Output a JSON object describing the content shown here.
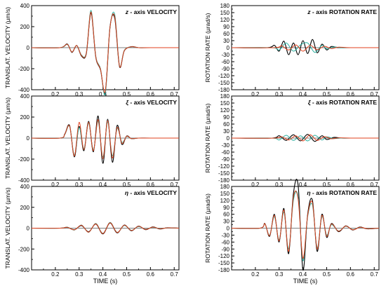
{
  "chart_data": [
    {
      "type": "line",
      "title_sym": "z",
      "title": " - axis  VELOCITY",
      "ylabel": "TRANSLAT. VELOCITY  (µm/s)",
      "xlabel": "",
      "xlim": [
        0.1,
        0.72
      ],
      "ylim": [
        -400,
        400
      ],
      "yticks": [
        "400",
        "200",
        "0",
        "-200",
        "-400"
      ],
      "xticks": [
        "0.2",
        "0.3",
        "0.4",
        "0.5",
        "0.6",
        "0.7"
      ],
      "series": [
        {
          "color": "#000000",
          "x": [
            0.1,
            0.22,
            0.25,
            0.27,
            0.29,
            0.31,
            0.33,
            0.35,
            0.37,
            0.39,
            0.41,
            0.43,
            0.45,
            0.47,
            0.49,
            0.52,
            0.55,
            0.6,
            0.72
          ],
          "y": [
            0,
            0,
            35,
            -45,
            20,
            -80,
            -60,
            330,
            -90,
            -210,
            -420,
            200,
            280,
            -180,
            -30,
            10,
            0,
            0,
            0
          ]
        },
        {
          "color": "#2ab0a0",
          "x": [
            0.1,
            0.22,
            0.25,
            0.27,
            0.29,
            0.31,
            0.33,
            0.35,
            0.37,
            0.39,
            0.41,
            0.43,
            0.45,
            0.47,
            0.49,
            0.52,
            0.55,
            0.6,
            0.72
          ],
          "y": [
            0,
            0,
            30,
            -40,
            22,
            -70,
            -50,
            355,
            -80,
            -200,
            -440,
            190,
            315,
            -170,
            -25,
            8,
            0,
            0,
            0
          ]
        },
        {
          "color": "#e0401c",
          "x": [
            0.1,
            0.22,
            0.25,
            0.27,
            0.29,
            0.31,
            0.33,
            0.35,
            0.37,
            0.39,
            0.41,
            0.43,
            0.45,
            0.47,
            0.49,
            0.52,
            0.55,
            0.6,
            0.72
          ],
          "y": [
            0,
            0,
            32,
            -42,
            21,
            -75,
            -55,
            340,
            -85,
            -205,
            -415,
            195,
            295,
            -175,
            -28,
            9,
            0,
            0,
            0
          ]
        }
      ]
    },
    {
      "type": "line",
      "title_sym": "z",
      "title": " - axis  ROTATION RATE",
      "ylabel": "ROTATION  RATE  (µrad/s)",
      "xlabel": "",
      "xlim": [
        0.1,
        0.72
      ],
      "ylim": [
        -180,
        180
      ],
      "yticks": [
        "180",
        "150",
        "120",
        "90",
        "60",
        "30",
        "0",
        "-30",
        "-60",
        "-90",
        "-120",
        "-150",
        "-180"
      ],
      "xticks": [
        "0.2",
        "0.3",
        "0.4",
        "0.5",
        "0.6",
        "0.7"
      ],
      "series": [
        {
          "color": "#000000",
          "x": [
            0.1,
            0.25,
            0.28,
            0.3,
            0.32,
            0.34,
            0.36,
            0.38,
            0.4,
            0.42,
            0.44,
            0.46,
            0.48,
            0.5,
            0.52,
            0.55,
            0.6,
            0.72
          ],
          "y": [
            0,
            0,
            10,
            -15,
            28,
            -30,
            20,
            -30,
            30,
            -25,
            35,
            -22,
            15,
            -10,
            5,
            0,
            0,
            0
          ]
        },
        {
          "color": "#2ab0a0",
          "x": [
            0.1,
            0.27,
            0.3,
            0.33,
            0.36,
            0.39,
            0.42,
            0.45,
            0.48,
            0.5,
            0.53,
            0.56,
            0.6,
            0.72
          ],
          "y": [
            0,
            0,
            -10,
            20,
            -15,
            12,
            20,
            -20,
            10,
            -5,
            3,
            0,
            0,
            0
          ]
        },
        {
          "color": "#e0401c",
          "x": [
            0.1,
            0.28,
            0.31,
            0.34,
            0.37,
            0.4,
            0.43,
            0.46,
            0.49,
            0.52,
            0.55,
            0.6,
            0.72
          ],
          "y": [
            0,
            0,
            8,
            -10,
            12,
            -15,
            10,
            -8,
            6,
            -4,
            2,
            0,
            0
          ]
        }
      ]
    },
    {
      "type": "line",
      "title_sym": "ξ",
      "title": " - axis  VELOCITY",
      "ylabel": "TRANSLAT. VELOCITY  (µm/s)",
      "xlabel": "",
      "xlim": [
        0.1,
        0.72
      ],
      "ylim": [
        -400,
        400
      ],
      "yticks": [
        "400",
        "200",
        "0",
        "-200",
        "-400"
      ],
      "xticks": [
        "0.2",
        "0.3",
        "0.4",
        "0.5",
        "0.6",
        "0.7"
      ],
      "series": [
        {
          "color": "#000000",
          "x": [
            0.1,
            0.22,
            0.24,
            0.26,
            0.28,
            0.3,
            0.32,
            0.34,
            0.36,
            0.38,
            0.4,
            0.42,
            0.44,
            0.46,
            0.48,
            0.5,
            0.52,
            0.55,
            0.6,
            0.72
          ],
          "y": [
            0,
            0,
            40,
            120,
            -180,
            110,
            -120,
            160,
            -130,
            210,
            -240,
            180,
            -230,
            120,
            -60,
            20,
            -5,
            0,
            0,
            0
          ]
        },
        {
          "color": "#2ab0a0",
          "x": [
            0.1,
            0.22,
            0.24,
            0.26,
            0.28,
            0.3,
            0.32,
            0.34,
            0.36,
            0.38,
            0.4,
            0.42,
            0.44,
            0.46,
            0.48,
            0.5,
            0.52,
            0.55,
            0.6,
            0.72
          ],
          "y": [
            0,
            0,
            35,
            110,
            -160,
            100,
            -100,
            140,
            -110,
            160,
            -180,
            150,
            -170,
            90,
            -40,
            15,
            -5,
            0,
            0,
            0
          ]
        },
        {
          "color": "#e0401c",
          "x": [
            0.1,
            0.22,
            0.24,
            0.26,
            0.28,
            0.3,
            0.32,
            0.34,
            0.36,
            0.38,
            0.4,
            0.42,
            0.44,
            0.46,
            0.48,
            0.5,
            0.52,
            0.55,
            0.6,
            0.72
          ],
          "y": [
            0,
            0,
            38,
            115,
            -170,
            150,
            -110,
            150,
            -120,
            175,
            -195,
            165,
            -190,
            100,
            -50,
            18,
            -5,
            0,
            0,
            0
          ]
        }
      ]
    },
    {
      "type": "line",
      "title_sym": "ξ",
      "title": " - axis  ROTATION RATE",
      "ylabel": "ROTATION  RATE  (µrad/s)",
      "xlabel": "",
      "xlim": [
        0.1,
        0.72
      ],
      "ylim": [
        -180,
        180
      ],
      "yticks": [
        "180",
        "150",
        "120",
        "90",
        "60",
        "30",
        "0",
        "-30",
        "-60",
        "-90",
        "-120",
        "-150",
        "-180"
      ],
      "xticks": [
        "0.2",
        "0.3",
        "0.4",
        "0.5",
        "0.6",
        "0.7"
      ],
      "series": [
        {
          "color": "#000000",
          "x": [
            0.1,
            0.27,
            0.3,
            0.33,
            0.36,
            0.39,
            0.42,
            0.45,
            0.48,
            0.5,
            0.53,
            0.56,
            0.6,
            0.72
          ],
          "y": [
            0,
            0,
            10,
            -10,
            14,
            -12,
            16,
            -14,
            10,
            -6,
            3,
            0,
            0,
            0
          ]
        },
        {
          "color": "#2ab0a0",
          "x": [
            0.1,
            0.27,
            0.3,
            0.33,
            0.36,
            0.39,
            0.42,
            0.45,
            0.48,
            0.5,
            0.53,
            0.56,
            0.6,
            0.72
          ],
          "y": [
            0,
            0,
            -8,
            12,
            -10,
            10,
            -12,
            12,
            -8,
            5,
            -2,
            0,
            0,
            0
          ]
        },
        {
          "color": "#e0401c",
          "x": [
            0.1,
            0.28,
            0.31,
            0.34,
            0.37,
            0.4,
            0.43,
            0.46,
            0.49,
            0.52,
            0.55,
            0.6,
            0.72
          ],
          "y": [
            0,
            0,
            6,
            -8,
            10,
            -12,
            14,
            -10,
            6,
            -3,
            1,
            0,
            0
          ]
        }
      ]
    },
    {
      "type": "line",
      "title_sym": "η",
      "title": " - axis  VELOCITY",
      "ylabel": "TRANSLAT. VELOCITY  (µm/s)",
      "xlabel": "TIME (s)",
      "xlim": [
        0.1,
        0.72
      ],
      "ylim": [
        -400,
        400
      ],
      "yticks": [
        "400",
        "200",
        "0",
        "-200",
        "-400"
      ],
      "xticks": [
        "0.2",
        "0.3",
        "0.4",
        "0.5",
        "0.6",
        "0.7"
      ],
      "series": [
        {
          "color": "#000000",
          "x": [
            0.1,
            0.22,
            0.25,
            0.28,
            0.31,
            0.34,
            0.37,
            0.4,
            0.43,
            0.46,
            0.49,
            0.52,
            0.55,
            0.58,
            0.61,
            0.64,
            0.67,
            0.72
          ],
          "y": [
            0,
            0,
            8,
            -15,
            25,
            -35,
            40,
            -55,
            50,
            -45,
            30,
            -25,
            20,
            -15,
            12,
            -8,
            4,
            0
          ]
        },
        {
          "color": "#2ab0a0",
          "x": [
            0.1,
            0.22,
            0.25,
            0.28,
            0.31,
            0.34,
            0.37,
            0.4,
            0.43,
            0.46,
            0.49,
            0.52,
            0.55,
            0.58,
            0.61,
            0.64,
            0.67,
            0.72
          ],
          "y": [
            0,
            0,
            10,
            -18,
            30,
            -40,
            45,
            -50,
            55,
            -40,
            25,
            -20,
            15,
            -10,
            8,
            -5,
            2,
            0
          ]
        },
        {
          "color": "#e0401c",
          "x": [
            0.1,
            0.22,
            0.25,
            0.28,
            0.31,
            0.34,
            0.37,
            0.4,
            0.43,
            0.46,
            0.49,
            0.52,
            0.55,
            0.58,
            0.61,
            0.64,
            0.67,
            0.72
          ],
          "y": [
            0,
            0,
            9,
            -16,
            28,
            -38,
            42,
            -52,
            52,
            -42,
            28,
            -22,
            18,
            -12,
            10,
            -6,
            3,
            0
          ]
        }
      ]
    },
    {
      "type": "line",
      "title_sym": "η",
      "title": " - axis  ROTATION RATE",
      "ylabel": "ROTATION  RATE  (µrad/s)",
      "xlabel": "TIME (s)",
      "xlim": [
        0.1,
        0.72
      ],
      "ylim": [
        -180,
        180
      ],
      "yticks": [
        "180",
        "150",
        "120",
        "90",
        "60",
        "30",
        "0",
        "-30",
        "-60",
        "-90",
        "-120",
        "-150",
        "-180"
      ],
      "xticks": [
        "0.2",
        "0.3",
        "0.4",
        "0.5",
        "0.6",
        "0.7"
      ],
      "series": [
        {
          "color": "#000000",
          "x": [
            0.1,
            0.22,
            0.24,
            0.26,
            0.28,
            0.3,
            0.32,
            0.34,
            0.36,
            0.38,
            0.4,
            0.42,
            0.44,
            0.46,
            0.48,
            0.5,
            0.52,
            0.55,
            0.58,
            0.61,
            0.64,
            0.67,
            0.72
          ],
          "y": [
            0,
            0,
            20,
            -35,
            60,
            -60,
            85,
            -110,
            150,
            185,
            -180,
            60,
            120,
            -100,
            60,
            -40,
            20,
            -15,
            10,
            -8,
            5,
            -3,
            0
          ]
        },
        {
          "color": "#2ab0a0",
          "x": [
            0.1,
            0.22,
            0.24,
            0.26,
            0.28,
            0.3,
            0.32,
            0.34,
            0.36,
            0.38,
            0.4,
            0.42,
            0.44,
            0.46,
            0.48,
            0.5,
            0.52,
            0.55,
            0.58,
            0.61,
            0.64,
            0.67,
            0.72
          ],
          "y": [
            0,
            0,
            18,
            -30,
            50,
            -50,
            70,
            -90,
            120,
            135,
            -140,
            50,
            100,
            -85,
            50,
            -30,
            15,
            -12,
            8,
            -6,
            4,
            -2,
            0
          ]
        },
        {
          "color": "#e0401c",
          "x": [
            0.1,
            0.22,
            0.24,
            0.26,
            0.28,
            0.3,
            0.32,
            0.34,
            0.36,
            0.38,
            0.4,
            0.42,
            0.44,
            0.46,
            0.48,
            0.5,
            0.52,
            0.55,
            0.58,
            0.61,
            0.64,
            0.67,
            0.72
          ],
          "y": [
            0,
            0,
            19,
            -32,
            55,
            -55,
            78,
            -100,
            135,
            125,
            -130,
            55,
            110,
            -90,
            55,
            -35,
            18,
            -13,
            9,
            -7,
            4,
            -2,
            0
          ]
        }
      ]
    }
  ]
}
